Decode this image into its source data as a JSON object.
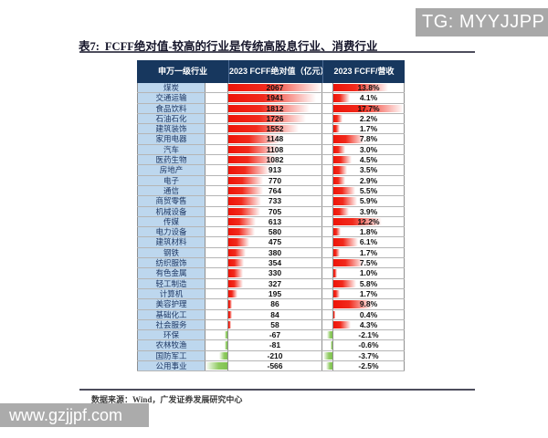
{
  "banner": {
    "text": "TG: MYYJJPP"
  },
  "title": {
    "prefix": "表7:",
    "text": "FCFF绝对值-较高的行业是传统高股息行业、消费行业"
  },
  "table": {
    "headers": [
      "申万一级行业",
      "2023 FCFF绝对值（亿元）",
      "2023 FCFF/营收"
    ],
    "rows": [
      {
        "industry": "煤炭",
        "fcff": 2067,
        "ratio_pct": 13.8
      },
      {
        "industry": "交通运输",
        "fcff": 1941,
        "ratio_pct": 4.1
      },
      {
        "industry": "食品饮料",
        "fcff": 1812,
        "ratio_pct": 17.7
      },
      {
        "industry": "石油石化",
        "fcff": 1726,
        "ratio_pct": 2.2
      },
      {
        "industry": "建筑装饰",
        "fcff": 1552,
        "ratio_pct": 1.7
      },
      {
        "industry": "家用电器",
        "fcff": 1148,
        "ratio_pct": 7.8
      },
      {
        "industry": "汽车",
        "fcff": 1108,
        "ratio_pct": 3.0
      },
      {
        "industry": "医药生物",
        "fcff": 1082,
        "ratio_pct": 4.5
      },
      {
        "industry": "房地产",
        "fcff": 913,
        "ratio_pct": 3.5
      },
      {
        "industry": "电子",
        "fcff": 770,
        "ratio_pct": 2.9
      },
      {
        "industry": "通信",
        "fcff": 764,
        "ratio_pct": 5.5
      },
      {
        "industry": "商贸零售",
        "fcff": 733,
        "ratio_pct": 5.9
      },
      {
        "industry": "机械设备",
        "fcff": 705,
        "ratio_pct": 3.9
      },
      {
        "industry": "传媒",
        "fcff": 613,
        "ratio_pct": 12.2
      },
      {
        "industry": "电力设备",
        "fcff": 580,
        "ratio_pct": 1.8
      },
      {
        "industry": "建筑材料",
        "fcff": 475,
        "ratio_pct": 6.1
      },
      {
        "industry": "钢铁",
        "fcff": 380,
        "ratio_pct": 1.7
      },
      {
        "industry": "纺织服饰",
        "fcff": 354,
        "ratio_pct": 7.5
      },
      {
        "industry": "有色金属",
        "fcff": 330,
        "ratio_pct": 1.0
      },
      {
        "industry": "轻工制造",
        "fcff": 327,
        "ratio_pct": 5.8
      },
      {
        "industry": "计算机",
        "fcff": 195,
        "ratio_pct": 1.7
      },
      {
        "industry": "美容护理",
        "fcff": 86,
        "ratio_pct": 9.8
      },
      {
        "industry": "基础化工",
        "fcff": 84,
        "ratio_pct": 0.4
      },
      {
        "industry": "社会服务",
        "fcff": 58,
        "ratio_pct": 4.3
      },
      {
        "industry": "环保",
        "fcff": -67,
        "ratio_pct": -2.1
      },
      {
        "industry": "农林牧渔",
        "fcff": -81,
        "ratio_pct": -0.6
      },
      {
        "industry": "国防军工",
        "fcff": -210,
        "ratio_pct": -3.7
      },
      {
        "industry": "公用事业",
        "fcff": -566,
        "ratio_pct": -2.5
      }
    ]
  },
  "footer": {
    "source": "数据来源：Wind，广发证券发展研究中心"
  },
  "watermark": {
    "text": "www.gzjjpf.com"
  },
  "colors": {
    "header_bg": "#17375e",
    "industry_cell_bg": "#bdd7ee",
    "industry_text": "#1f3864",
    "positive_bar": "#ee1408",
    "negative_bar": "#7fc24f",
    "banner_bg": "#a8a8a8",
    "watermark_bg": "#ababab"
  },
  "chart_data": {
    "type": "table",
    "title": "表7: FCFF绝对值-较高的行业是传统高股息行业、消费行业",
    "columns": [
      "申万一级行业",
      "2023 FCFF绝对值（亿元）",
      "2023 FCFF/营收"
    ],
    "categories": [
      "煤炭",
      "交通运输",
      "食品饮料",
      "石油石化",
      "建筑装饰",
      "家用电器",
      "汽车",
      "医药生物",
      "房地产",
      "电子",
      "通信",
      "商贸零售",
      "机械设备",
      "传媒",
      "电力设备",
      "建筑材料",
      "钢铁",
      "纺织服饰",
      "有色金属",
      "轻工制造",
      "计算机",
      "美容护理",
      "基础化工",
      "社会服务",
      "环保",
      "农林牧渔",
      "国防军工",
      "公用事业"
    ],
    "series": [
      {
        "name": "2023 FCFF绝对值（亿元）",
        "values": [
          2067,
          1941,
          1812,
          1726,
          1552,
          1148,
          1108,
          1082,
          913,
          770,
          764,
          733,
          705,
          613,
          580,
          475,
          380,
          354,
          330,
          327,
          195,
          86,
          84,
          58,
          -67,
          -81,
          -210,
          -566
        ]
      },
      {
        "name": "2023 FCFF/营收 (%)",
        "values": [
          13.8,
          4.1,
          17.7,
          2.2,
          1.7,
          7.8,
          3.0,
          4.5,
          3.5,
          2.9,
          5.5,
          5.9,
          3.9,
          12.2,
          1.8,
          6.1,
          1.7,
          7.5,
          1.0,
          5.8,
          1.7,
          9.8,
          0.4,
          4.3,
          -2.1,
          -0.6,
          -3.7,
          -2.5
        ]
      }
    ],
    "bar_style": "in-cell gradient data bars; red rightward for positive, green leftward for negative",
    "source": "数据来源：Wind，广发证券发展研究中心"
  }
}
